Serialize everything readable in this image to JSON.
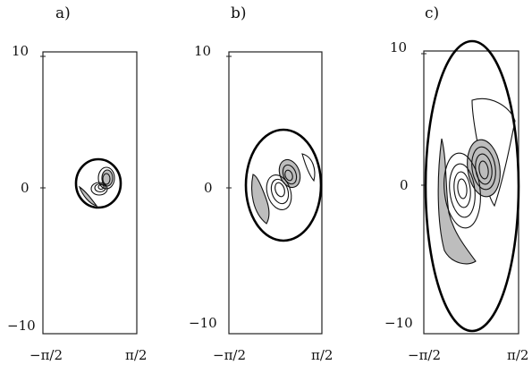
{
  "panels": [
    {
      "label": "a)",
      "y_ticks": [
        "10",
        "0",
        "−10"
      ],
      "x_ticks": [
        "−π/2",
        "π/2"
      ]
    },
    {
      "label": "b)",
      "y_ticks": [
        "10",
        "0",
        "−10"
      ],
      "x_ticks": [
        "−π/2",
        "π/2"
      ]
    },
    {
      "label": "c)",
      "y_ticks": [
        "10",
        "0",
        "−10"
      ],
      "x_ticks": [
        "−π/2",
        "π/2"
      ]
    }
  ],
  "colors": {
    "shaded_region": "#bdbdbd",
    "lines": "#111111"
  }
}
